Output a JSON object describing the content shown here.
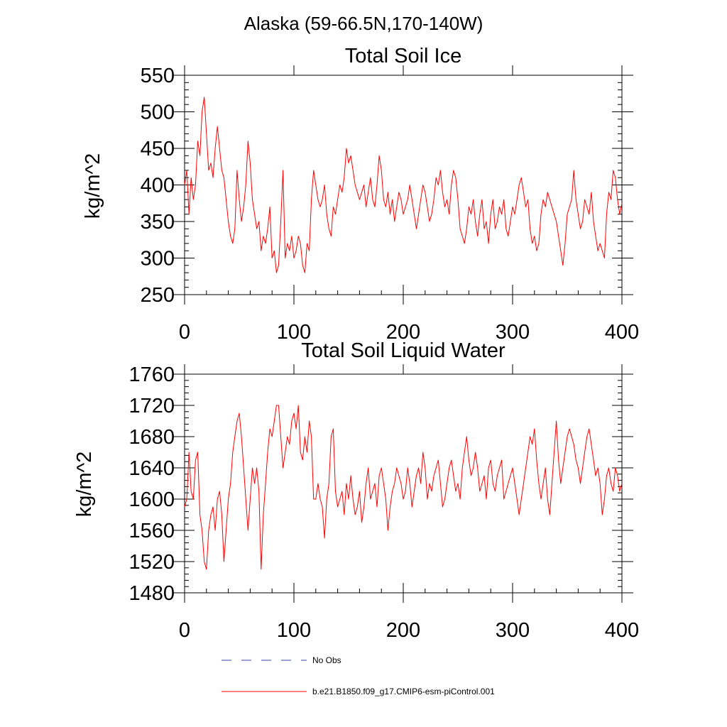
{
  "figure": {
    "main_title": "Alaska (59-66.5N,170-140W)"
  },
  "legend": {
    "placement": "bottom-center",
    "entries": [
      {
        "label": "No Obs",
        "color": "#3344aa",
        "style": "dashed"
      },
      {
        "label": "b.e21.B1850.f09_g17.CMIP6-esm-piControl.001",
        "color": "#ff0000",
        "style": "solid"
      }
    ]
  },
  "chart_data": [
    {
      "type": "line",
      "title": "Total Soil Ice",
      "xlabel": "",
      "ylabel": "kg/m^2",
      "xlim": [
        0,
        400
      ],
      "ylim": [
        250,
        550
      ],
      "x_ticks": [
        0,
        100,
        200,
        300,
        400
      ],
      "y_ticks": [
        250,
        300,
        350,
        400,
        450,
        500,
        550
      ],
      "grid": false,
      "series": [
        {
          "color": "#ff0000",
          "x_start": 0,
          "x_step": 2,
          "values": [
            400,
            420,
            360,
            410,
            380,
            400,
            460,
            440,
            500,
            520,
            470,
            420,
            430,
            410,
            450,
            480,
            450,
            420,
            410,
            380,
            350,
            330,
            320,
            340,
            420,
            380,
            350,
            370,
            400,
            460,
            430,
            380,
            360,
            340,
            350,
            310,
            330,
            320,
            340,
            370,
            300,
            310,
            280,
            290,
            350,
            420,
            300,
            320,
            310,
            330,
            300,
            310,
            330,
            320,
            290,
            280,
            320,
            310,
            380,
            420,
            400,
            380,
            370,
            380,
            400,
            360,
            340,
            330,
            370,
            360,
            380,
            400,
            390,
            410,
            450,
            430,
            440,
            420,
            400,
            390,
            380,
            390,
            400,
            370,
            390,
            410,
            380,
            370,
            400,
            440,
            420,
            380,
            370,
            390,
            360,
            380,
            350,
            370,
            390,
            380,
            360,
            370,
            380,
            400,
            380,
            360,
            340,
            360,
            380,
            400,
            390,
            370,
            350,
            360,
            380,
            410,
            400,
            420,
            390,
            370,
            380,
            360,
            400,
            420,
            410,
            380,
            340,
            330,
            320,
            340,
            370,
            360,
            380,
            350,
            330,
            360,
            380,
            340,
            350,
            320,
            360,
            380,
            340,
            350,
            370,
            360,
            380,
            340,
            330,
            350,
            370,
            360,
            380,
            400,
            410,
            390,
            370,
            380,
            340,
            320,
            330,
            310,
            320,
            360,
            380,
            370,
            390,
            380,
            370,
            360,
            350,
            330,
            310,
            290,
            320,
            360,
            370,
            380,
            420,
            380,
            360,
            340,
            350,
            380,
            370,
            360,
            390,
            350,
            330,
            310,
            320,
            310,
            300,
            360,
            390,
            380,
            420,
            410,
            380,
            360,
            375
          ]
        }
      ]
    },
    {
      "type": "line",
      "title": "Total Soil Liquid Water",
      "xlabel": "",
      "ylabel": "kg/m^2",
      "xlim": [
        0,
        400
      ],
      "ylim": [
        1480,
        1760
      ],
      "x_ticks": [
        0,
        100,
        200,
        300,
        400
      ],
      "y_ticks": [
        1480,
        1520,
        1560,
        1600,
        1640,
        1680,
        1720,
        1760
      ],
      "grid": false,
      "series": [
        {
          "color": "#ff0000",
          "x_start": 0,
          "x_step": 2,
          "values": [
            1590,
            1600,
            1660,
            1610,
            1600,
            1650,
            1660,
            1580,
            1560,
            1520,
            1510,
            1560,
            1580,
            1590,
            1560,
            1600,
            1610,
            1580,
            1520,
            1560,
            1600,
            1620,
            1660,
            1680,
            1700,
            1710,
            1680,
            1640,
            1600,
            1560,
            1600,
            1640,
            1620,
            1640,
            1610,
            1510,
            1580,
            1620,
            1660,
            1690,
            1680,
            1700,
            1720,
            1720,
            1680,
            1640,
            1660,
            1680,
            1670,
            1700,
            1710,
            1690,
            1720,
            1660,
            1650,
            1680,
            1660,
            1700,
            1680,
            1600,
            1600,
            1620,
            1600,
            1590,
            1550,
            1600,
            1620,
            1680,
            1690,
            1610,
            1590,
            1600,
            1610,
            1580,
            1620,
            1600,
            1630,
            1600,
            1580,
            1590,
            1610,
            1570,
            1590,
            1620,
            1640,
            1600,
            1610,
            1620,
            1590,
            1630,
            1640,
            1620,
            1600,
            1560,
            1590,
            1610,
            1620,
            1640,
            1630,
            1620,
            1600,
            1610,
            1640,
            1620,
            1590,
            1610,
            1630,
            1640,
            1620,
            1660,
            1640,
            1600,
            1620,
            1610,
            1630,
            1640,
            1650,
            1620,
            1590,
            1600,
            1620,
            1640,
            1650,
            1630,
            1610,
            1620,
            1600,
            1640,
            1660,
            1680,
            1650,
            1630,
            1640,
            1660,
            1640,
            1610,
            1620,
            1630,
            1600,
            1640,
            1650,
            1620,
            1610,
            1630,
            1640,
            1650,
            1600,
            1610,
            1620,
            1630,
            1640,
            1620,
            1600,
            1580,
            1600,
            1620,
            1640,
            1660,
            1680,
            1670,
            1690,
            1650,
            1620,
            1600,
            1620,
            1640,
            1600,
            1580,
            1620,
            1660,
            1700,
            1650,
            1620,
            1640,
            1660,
            1680,
            1690,
            1680,
            1670,
            1650,
            1640,
            1620,
            1640,
            1660,
            1680,
            1690,
            1670,
            1650,
            1630,
            1640,
            1620,
            1580,
            1600,
            1630,
            1640,
            1620,
            1610,
            1640,
            1630,
            1610,
            1620
          ]
        }
      ]
    }
  ]
}
